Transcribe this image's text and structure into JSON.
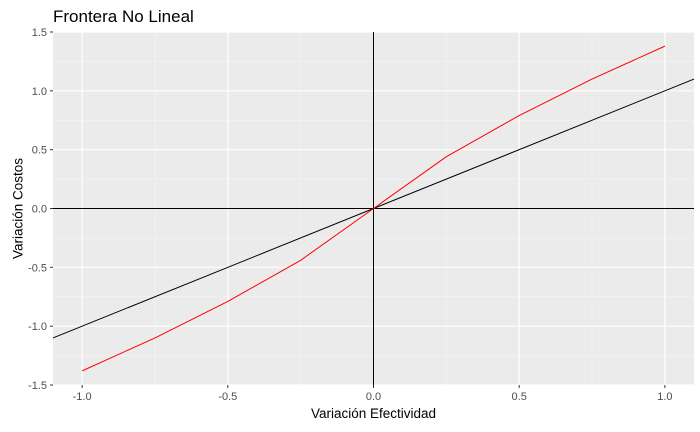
{
  "chart_data": {
    "type": "line",
    "title": "Frontera No Lineal",
    "xlabel": "Variación Efectividad",
    "ylabel": "Variación Costos",
    "xlim": [
      -1.1,
      1.1
    ],
    "ylim": [
      -1.5,
      1.5
    ],
    "x_ticks": [
      -1.0,
      -0.5,
      0.0,
      0.5,
      1.0
    ],
    "x_tick_labels": [
      "-1.0",
      "-0.5",
      "0.0",
      "0.5",
      "1.0"
    ],
    "y_ticks": [
      -1.5,
      -1.0,
      -0.5,
      0.0,
      0.5,
      1.0,
      1.5
    ],
    "y_tick_labels": [
      "-1.5",
      "-1.0",
      "-0.5",
      "0.0",
      "0.5",
      "1.0",
      "1.5"
    ],
    "grid": true,
    "legend": "none",
    "reference_lines": {
      "horizontal_y": 0,
      "vertical_x": 0,
      "diagonal": {
        "slope": 1,
        "intercept": 0,
        "color": "#000000"
      }
    },
    "series": [
      {
        "color": "#ff0000",
        "x": [
          -1.0,
          -0.75,
          -0.5,
          -0.25,
          0.0,
          0.25,
          0.5,
          0.75,
          1.0
        ],
        "y": [
          -1.38,
          -1.1,
          -0.79,
          -0.44,
          0.0,
          0.44,
          0.79,
          1.1,
          1.38
        ]
      }
    ],
    "colors": {
      "panel_background": "#ebebeb",
      "grid_major": "#ffffff",
      "grid_minor": "#f5f5f5",
      "reference": "#000000"
    }
  }
}
